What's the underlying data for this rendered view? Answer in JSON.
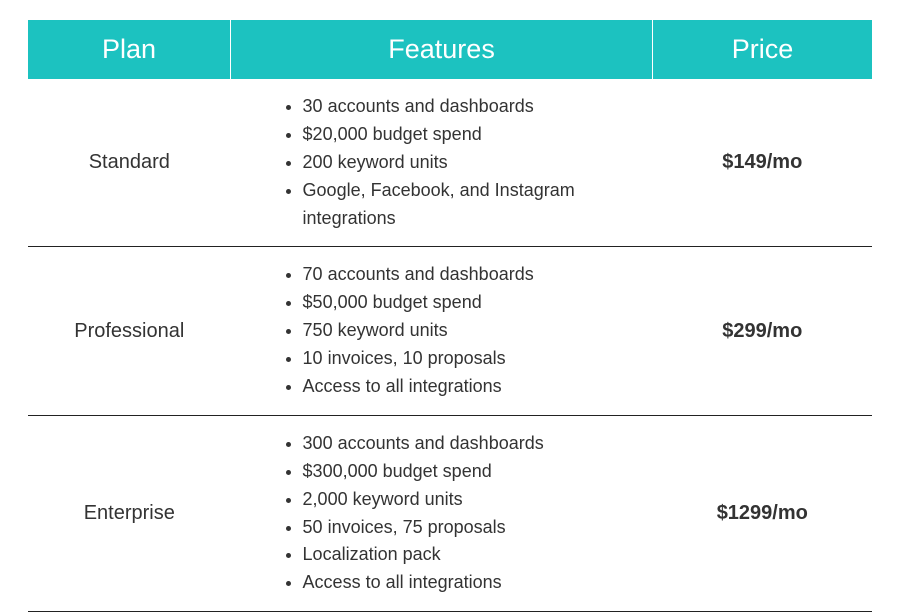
{
  "table": {
    "type": "table",
    "header_bg": "#1cc2c0",
    "header_text_color": "#ffffff",
    "header_fontsize": 27,
    "body_fontsize": 18,
    "plan_fontsize": 20,
    "price_fontsize": 20,
    "row_border_color": "#222222",
    "column_widths_pct": [
      24,
      50,
      26
    ],
    "columns": {
      "plan": "Plan",
      "features": "Features",
      "price": "Price"
    },
    "rows": [
      {
        "plan": "Standard",
        "features": [
          "30 accounts and dashboards",
          "$20,000 budget spend",
          "200 keyword units",
          "Google, Facebook, and Instagram integrations"
        ],
        "price": "$149/mo"
      },
      {
        "plan": "Professional",
        "features": [
          "70 accounts and dashboards",
          "$50,000 budget spend",
          "750 keyword units",
          "10 invoices, 10 proposals",
          "Access to all integrations"
        ],
        "price": "$299/mo"
      },
      {
        "plan": "Enterprise",
        "features": [
          "300 accounts and dashboards",
          "$300,000 budget spend",
          "2,000 keyword units",
          "50 invoices, 75 proposals",
          "Localization pack",
          "Access to all integrations"
        ],
        "price": "$1299/mo"
      }
    ]
  }
}
